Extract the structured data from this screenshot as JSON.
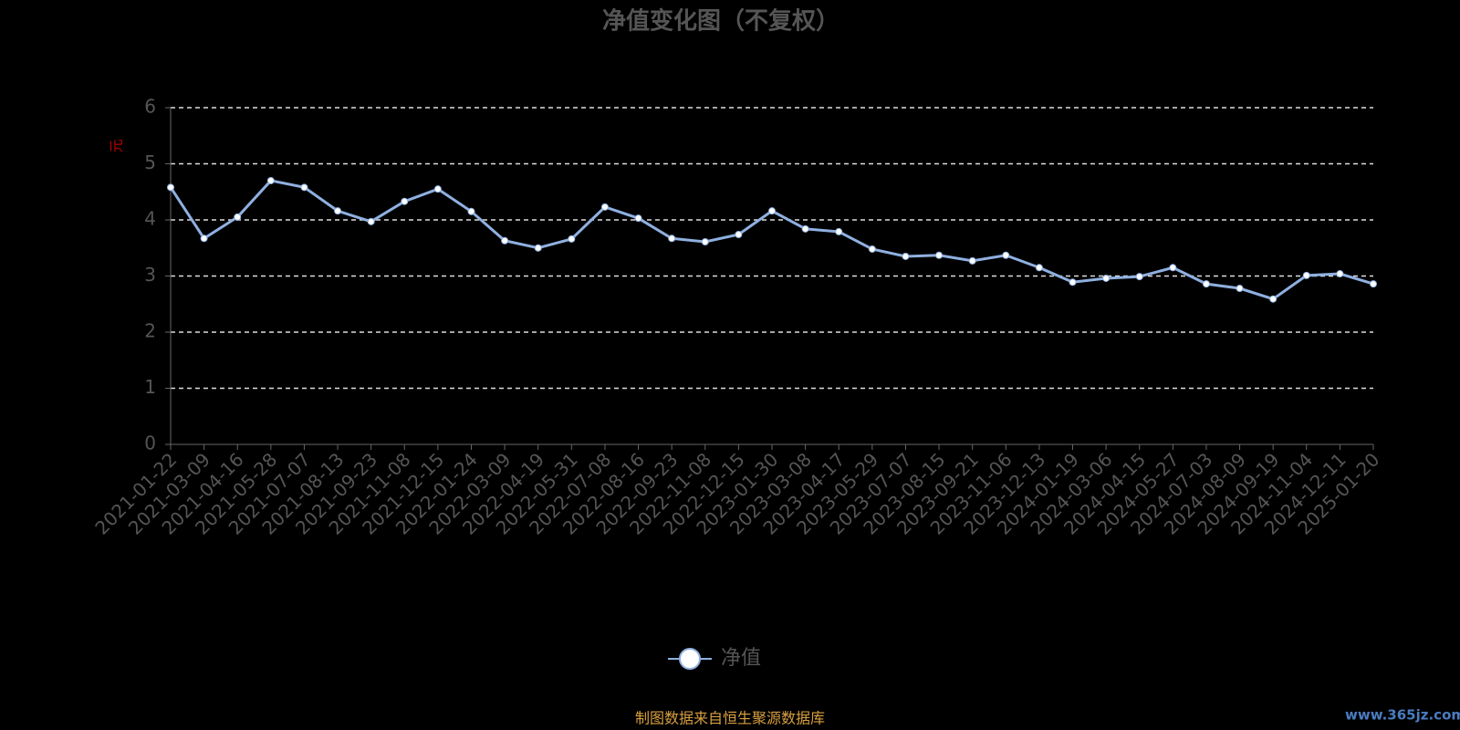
{
  "chart_data": {
    "type": "line",
    "title": "净值变化图（不复权）",
    "y_axis_label": "元",
    "categories": [
      "2021-01-22",
      "2021-03-09",
      "2021-04-16",
      "2021-05-28",
      "2021-07-07",
      "2021-08-13",
      "2021-09-23",
      "2021-11-08",
      "2021-12-15",
      "2022-01-24",
      "2022-03-09",
      "2022-04-19",
      "2022-05-31",
      "2022-07-08",
      "2022-08-16",
      "2022-09-23",
      "2022-11-08",
      "2022-12-15",
      "2023-01-30",
      "2023-03-08",
      "2023-04-17",
      "2023-05-29",
      "2023-07-07",
      "2023-08-15",
      "2023-09-21",
      "2023-11-06",
      "2023-12-13",
      "2024-01-19",
      "2024-03-06",
      "2024-04-15",
      "2024-05-27",
      "2024-07-03",
      "2024-08-09",
      "2024-09-19",
      "2024-11-04",
      "2024-12-11",
      "2025-01-20"
    ],
    "series": [
      {
        "name": "净值",
        "color": "#8fb0e0",
        "values": [
          4.58,
          3.67,
          4.05,
          4.7,
          4.58,
          4.16,
          3.97,
          4.33,
          4.55,
          4.15,
          3.63,
          3.5,
          3.66,
          4.23,
          4.03,
          3.67,
          3.61,
          3.74,
          4.16,
          3.84,
          3.79,
          3.48,
          3.35,
          3.37,
          3.27,
          3.37,
          3.15,
          2.89,
          2.96,
          2.99,
          3.15,
          2.86,
          2.78,
          2.59,
          3.01,
          3.04,
          2.86
        ]
      }
    ],
    "ylim": [
      0,
      6
    ],
    "yticks": [
      0,
      1,
      2,
      3,
      4,
      5,
      6
    ],
    "grid": true,
    "legend": "bottom",
    "source": "制图数据来自恒生聚源数据库",
    "watermark": "www.365jz.com"
  }
}
